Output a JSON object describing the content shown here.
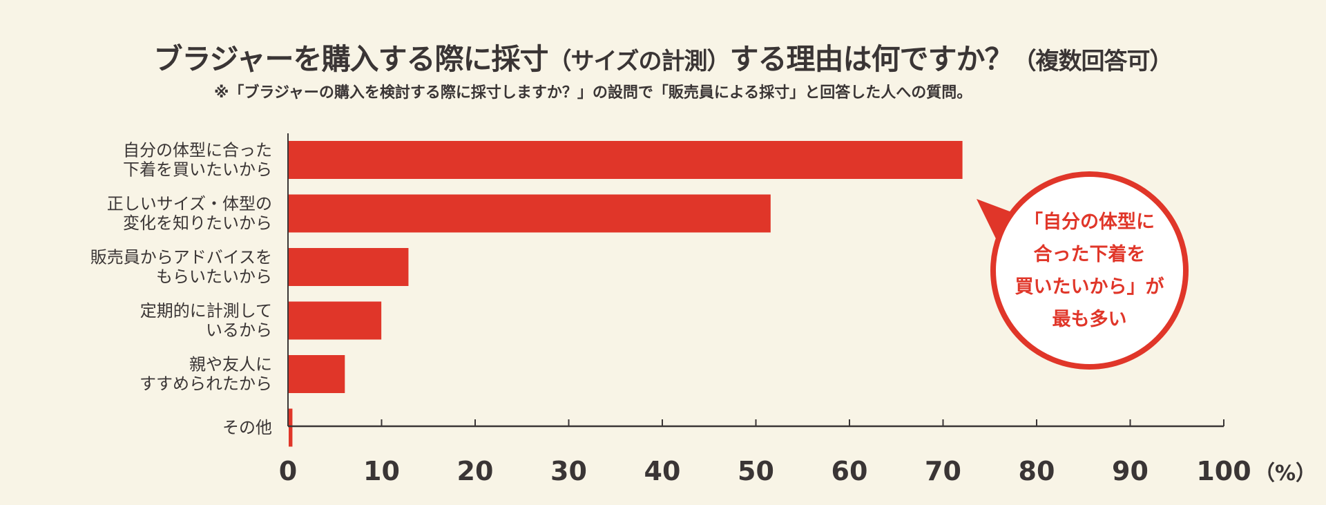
{
  "title_main": "ブラジャーを購入する際に採寸",
  "title_paren": "（サイズの計測）",
  "title_tail": "する理由は何ですか？",
  "title_multi": "（複数回答可）",
  "note": "※「ブラジャーの購入を検討する際に採寸しますか？」の設問で「販売員による採寸」と回答した人への質問。",
  "callout": {
    "lines": [
      "「自分の体型に",
      "合った下着を",
      "買いたいから」が",
      "最も多い"
    ]
  },
  "colors": {
    "bar": "#e03629",
    "axis": "#3a3535",
    "background": "#f8f4e6"
  },
  "chart_data": {
    "type": "bar",
    "orientation": "horizontal",
    "categories": [
      [
        "自分の体型に合った",
        "下着を買いたいから"
      ],
      [
        "正しいサイズ・体型の",
        "変化を知りたいから"
      ],
      [
        "販売員からアドバイスを",
        "もらいたいから"
      ],
      [
        "定期的に計測して",
        "いるから"
      ],
      [
        "親や友人に",
        "すすめられたから"
      ],
      [
        "その他"
      ]
    ],
    "values": [
      72,
      51.5,
      12.8,
      9.9,
      6,
      0.4
    ],
    "xlim": [
      0,
      100
    ],
    "xticks": [
      0,
      10,
      20,
      30,
      40,
      50,
      60,
      70,
      80,
      90,
      100
    ],
    "xtick_labels": [
      "0",
      "10",
      "20",
      "30",
      "40",
      "50",
      "60",
      "70",
      "80",
      "90",
      "100"
    ],
    "xunit": "（%）",
    "grid": false,
    "legend": "none"
  }
}
